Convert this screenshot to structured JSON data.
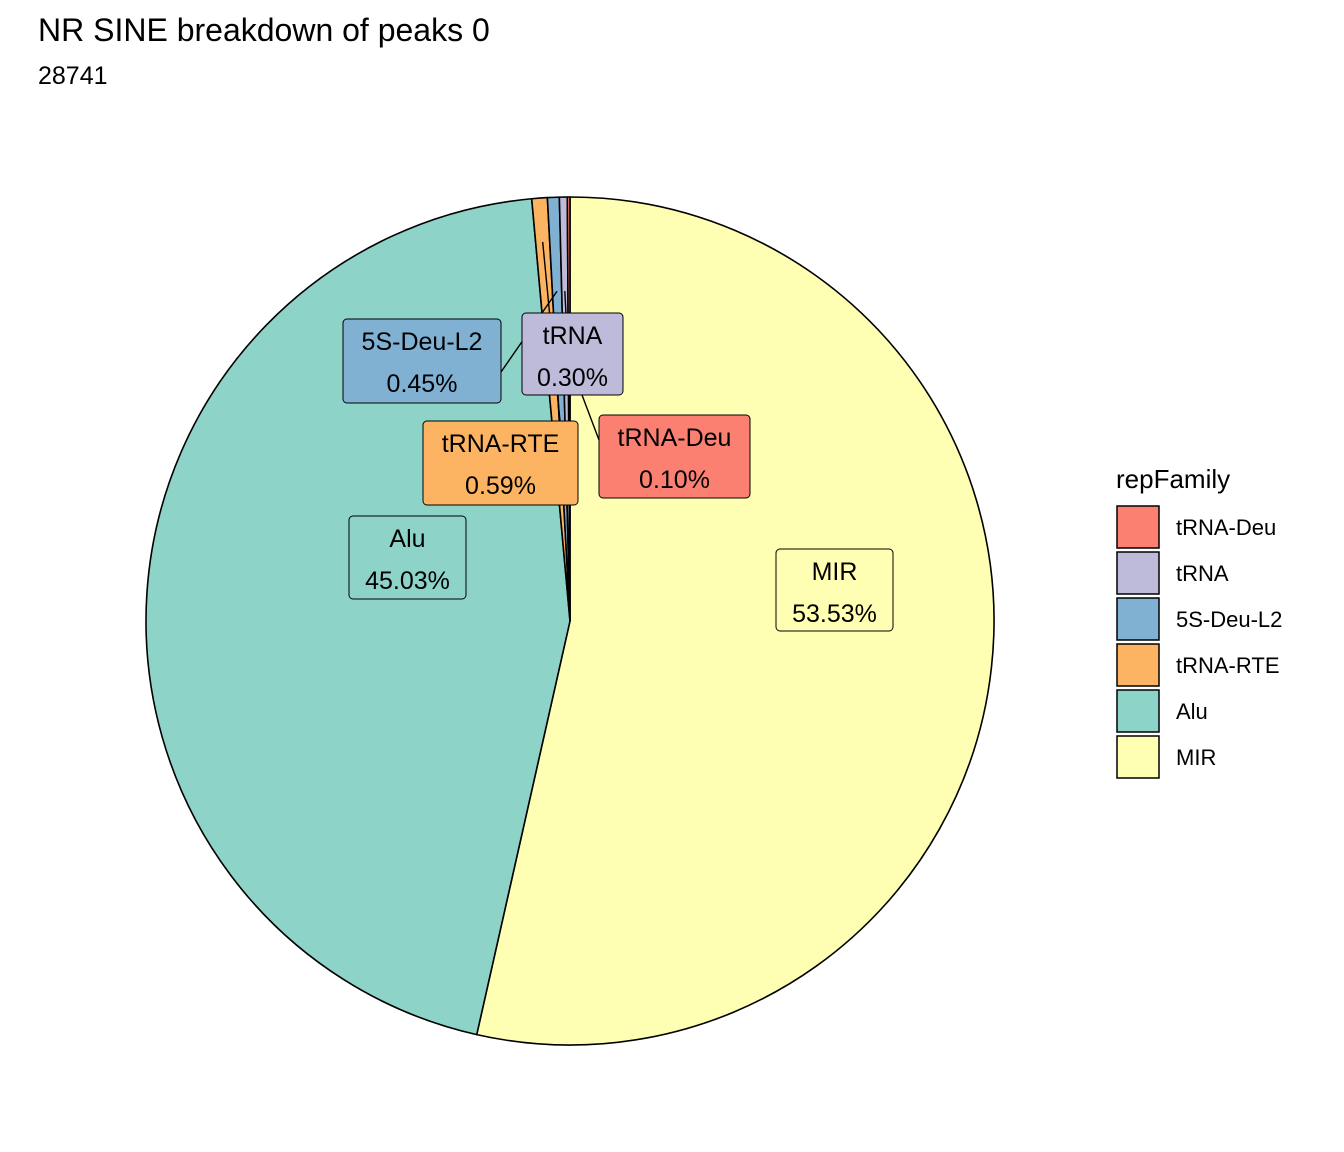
{
  "chart_data": {
    "type": "pie",
    "title": "NR SINE breakdown of peaks 0",
    "subtitle": "28741",
    "legend_title": "repFamily",
    "legend_position": "right",
    "slices": [
      {
        "name": "MIR",
        "value": 53.53,
        "label": "53.53%",
        "color": "#FFFFB3"
      },
      {
        "name": "Alu",
        "value": 45.03,
        "label": "45.03%",
        "color": "#8DD3C7"
      },
      {
        "name": "tRNA-RTE",
        "value": 0.59,
        "label": "0.59%",
        "color": "#FDB462"
      },
      {
        "name": "5S-Deu-L2",
        "value": 0.45,
        "label": "0.45%",
        "color": "#80B1D3"
      },
      {
        "name": "tRNA",
        "value": 0.3,
        "label": "0.30%",
        "color": "#BEBADA"
      },
      {
        "name": "tRNA-Deu",
        "value": 0.1,
        "label": "0.10%",
        "color": "#FB8072"
      }
    ],
    "legend_order": [
      "tRNA-Deu",
      "tRNA",
      "5S-Deu-L2",
      "tRNA-RTE",
      "Alu",
      "MIR"
    ]
  }
}
